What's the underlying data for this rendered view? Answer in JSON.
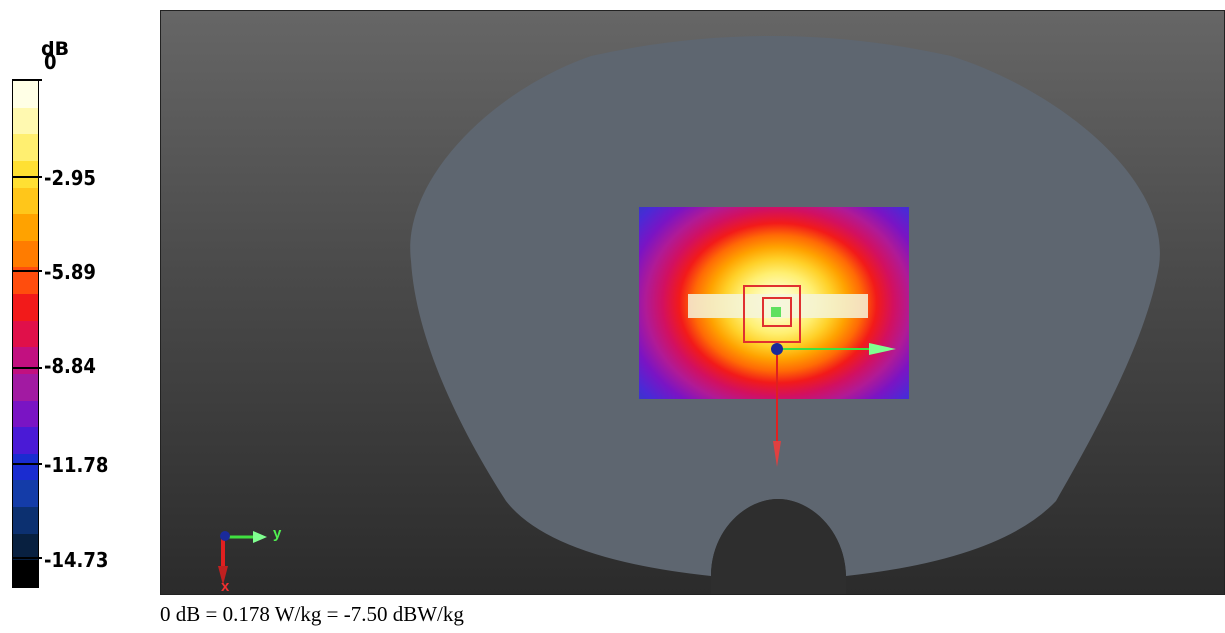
{
  "legend": {
    "unit": "dB",
    "ticks": [
      "0",
      "-2.95",
      "-5.89",
      "-8.84",
      "-11.78",
      "-14.73"
    ],
    "colors_top_to_bottom": [
      "#ffffe6",
      "#fff9b0",
      "#ffef70",
      "#ffe033",
      "#ffc61a",
      "#ffa200",
      "#ff7c00",
      "#ff4d0d",
      "#f21a1a",
      "#e0104a",
      "#c21080",
      "#a21aa2",
      "#7a14c4",
      "#4a1ad6",
      "#1a2cd0",
      "#143ca8",
      "#0c3070",
      "#082040",
      "#000000"
    ]
  },
  "viewport": {
    "axis_gizmo": {
      "y_label": "y",
      "x_label": "x"
    },
    "colors": {
      "phantom": "#5e6670",
      "axis_x": "#e02020",
      "axis_y": "#40e040",
      "origin": "#1a2a9a"
    }
  },
  "caption": "0 dB = 0.178 W/kg = -7.50 dBW/kg"
}
